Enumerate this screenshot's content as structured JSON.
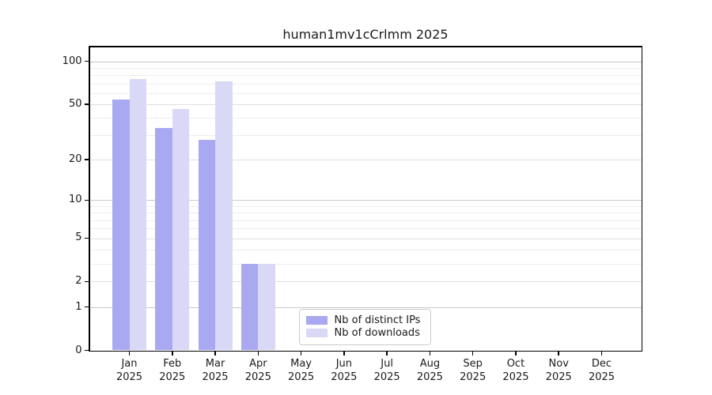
{
  "chart_data": {
    "type": "bar",
    "title": "human1mv1cCrlmm 2025",
    "year_label": "2025",
    "categories": [
      "Jan",
      "Feb",
      "Mar",
      "Apr",
      "May",
      "Jun",
      "Jul",
      "Aug",
      "Sep",
      "Oct",
      "Nov",
      "Dec"
    ],
    "series": [
      {
        "name": "Nb of distinct IPs",
        "color": "#a9a9f1",
        "values": [
          54,
          34,
          28,
          3,
          0,
          0,
          0,
          0,
          0,
          0,
          0,
          0
        ]
      },
      {
        "name": "Nb of downloads",
        "color": "#d9d9f7",
        "values": [
          75,
          46,
          72,
          3,
          0,
          0,
          0,
          0,
          0,
          0,
          0,
          0
        ]
      }
    ],
    "yscale": "log1p",
    "ylim": [
      0,
      126
    ],
    "yticks": [
      0,
      1,
      2,
      5,
      10,
      20,
      50,
      100
    ],
    "yticks_decade": [
      1,
      10,
      100
    ],
    "yticks_mid": [
      2,
      5,
      20,
      50
    ],
    "yticks_minor": [
      3,
      4,
      6,
      7,
      8,
      9,
      30,
      40,
      60,
      70,
      80,
      90
    ],
    "grid": "horizontal",
    "legend_position": "lower-center",
    "xlabel": "",
    "ylabel": ""
  },
  "colors": {
    "background": "#ffffff",
    "spine": "#000000",
    "text": "#1a1a1a",
    "grid_decade": "#c9c9c9",
    "grid_mid": "#e0e0e0",
    "grid_minor": "#ededed",
    "legend_border": "#cccccc"
  }
}
